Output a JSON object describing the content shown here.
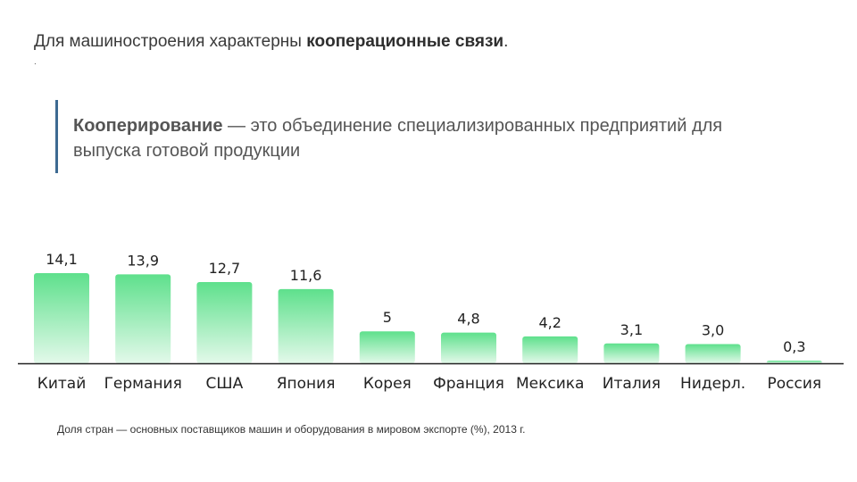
{
  "header": {
    "title_prefix": "Для машиностроения характерны ",
    "title_bold": "кооперационные связи",
    "title_suffix": ".",
    "dot": "."
  },
  "definition": {
    "term": "Кооперирование",
    "text": " — это объединение специализированных предприятий для выпуска готовой продукции"
  },
  "colors": {
    "bar_top": "#5ee08c",
    "bar_bottom": "#e3f9ea",
    "axis": "#222222",
    "quote_bar": "#3d6a92"
  },
  "chart_data": {
    "type": "bar",
    "categories": [
      "Китай",
      "Германия",
      "США",
      "Япония",
      "Корея",
      "Франция",
      "Мексика",
      "Италия",
      "Нидерл.",
      "Россия"
    ],
    "values": [
      14.1,
      13.9,
      12.7,
      11.6,
      5,
      4.8,
      4.2,
      3.1,
      3.0,
      0.3
    ],
    "value_labels": [
      "14,1",
      "13,9",
      "12,7",
      "11,6",
      "5",
      "4,8",
      "4,2",
      "3,1",
      "3,0",
      "0,3"
    ],
    "title": "",
    "xlabel": "",
    "ylabel": "",
    "ylim": [
      0,
      14.1
    ],
    "grid": false,
    "legend": "none",
    "caption": "Доля стран — основных поставщиков машин и оборудования в мировом экспорте (%), 2013 г."
  }
}
